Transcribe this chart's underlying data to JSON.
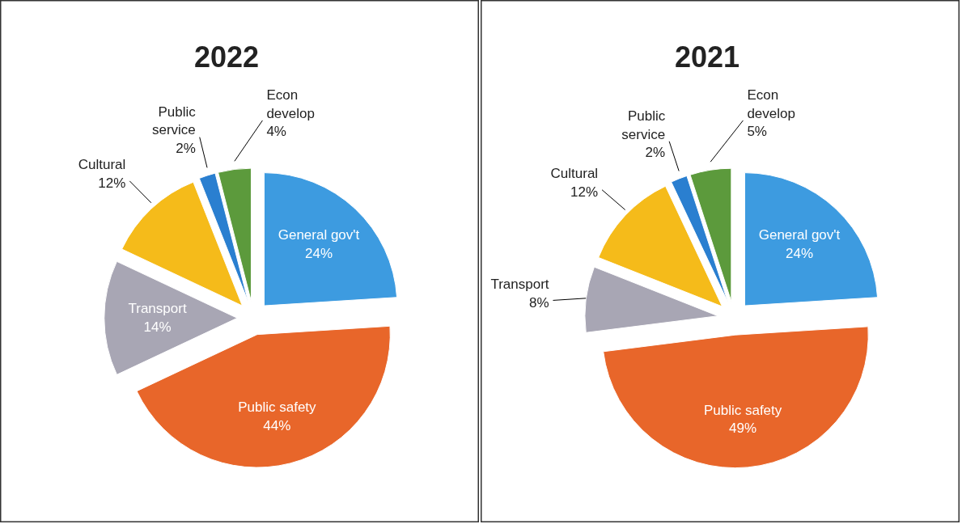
{
  "chart_data": [
    {
      "type": "pie",
      "title": "2022",
      "categories": [
        "General gov't",
        "Public safety",
        "Transport",
        "Cultural",
        "Public service",
        "Econ develop"
      ],
      "values": [
        24,
        44,
        14,
        12,
        2,
        4
      ],
      "value_labels": [
        "24%",
        "44%",
        "14%",
        "12%",
        "2%",
        "4%"
      ],
      "colors": [
        "#3d9be0",
        "#e8662a",
        "#a8a6b4",
        "#f5bb1a",
        "#2a7fd0",
        "#5c9a3c"
      ]
    },
    {
      "type": "pie",
      "title": "2021",
      "categories": [
        "General gov't",
        "Public safety",
        "Transport",
        "Cultural",
        "Public service",
        "Econ develop"
      ],
      "values": [
        24,
        49,
        8,
        12,
        2,
        5
      ],
      "value_labels": [
        "24%",
        "49%",
        "8%",
        "12%",
        "2%",
        "5%"
      ],
      "colors": [
        "#3d9be0",
        "#e8662a",
        "#a8a6b4",
        "#f5bb1a",
        "#2a7fd0",
        "#5c9a3c"
      ]
    }
  ]
}
